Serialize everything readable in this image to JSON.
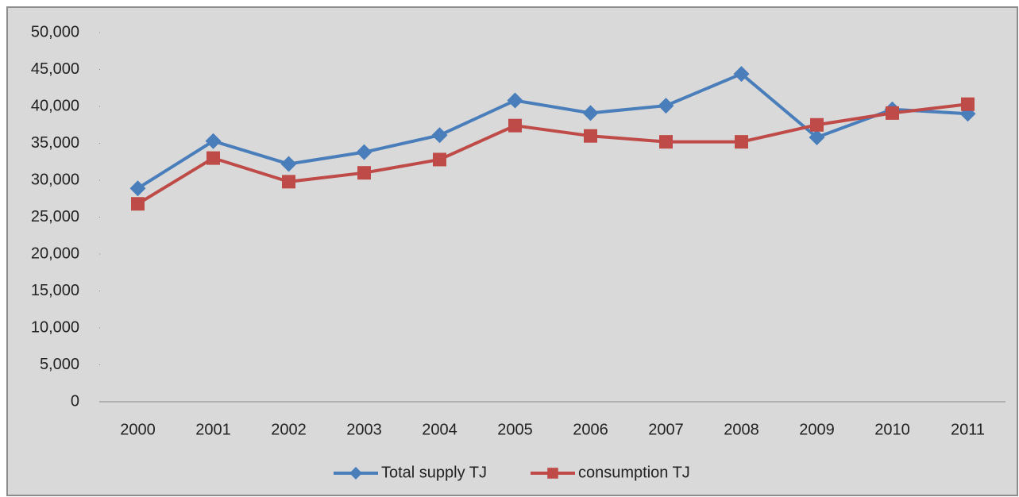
{
  "chart_data": {
    "type": "line",
    "categories": [
      "2000",
      "2001",
      "2002",
      "2003",
      "2004",
      "2005",
      "2006",
      "2007",
      "2008",
      "2009",
      "2010",
      "2011"
    ],
    "series": [
      {
        "name": "Total supply TJ",
        "color": "#4a7ebb",
        "marker": "diamond",
        "values": [
          28900,
          35300,
          32200,
          33800,
          36100,
          40800,
          39100,
          40100,
          44400,
          35800,
          39600,
          39000
        ]
      },
      {
        "name": "consumption TJ",
        "color": "#be4b48",
        "marker": "square",
        "values": [
          26800,
          33000,
          29800,
          31000,
          32800,
          37400,
          36000,
          35200,
          35200,
          37500,
          39100,
          40300
        ]
      }
    ],
    "ylim": [
      0,
      50000
    ],
    "yticks": [
      0,
      {
        "value": 5000,
        "label": "5,000"
      },
      {
        "value": 10000,
        "label": "10,000"
      },
      {
        "value": 15000,
        "label": "15,000"
      },
      {
        "value": 20000,
        "label": "20,000"
      },
      {
        "value": 25000,
        "label": "25,000"
      },
      {
        "value": 30000,
        "label": "30,000"
      },
      {
        "value": 35000,
        "label": "35,000"
      },
      {
        "value": 40000,
        "label": "40,000"
      },
      {
        "value": 45000,
        "label": "45,000"
      },
      {
        "value": 50000,
        "label": "50,000"
      }
    ],
    "grid": false,
    "legend": "bottom"
  }
}
